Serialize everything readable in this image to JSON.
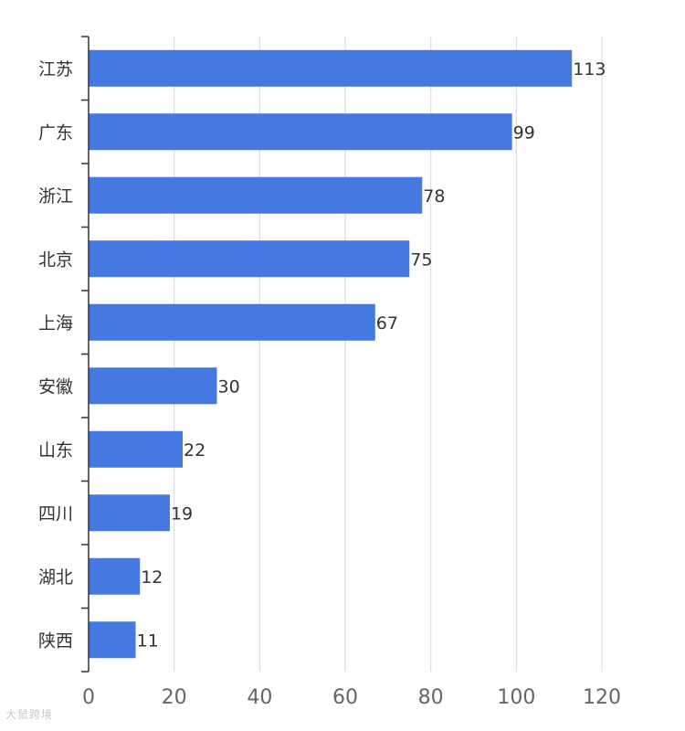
{
  "chart_data": {
    "type": "bar",
    "orientation": "horizontal",
    "categories": [
      "江苏",
      "广东",
      "浙江",
      "北京",
      "上海",
      "安徽",
      "山东",
      "四川",
      "湖北",
      "陕西"
    ],
    "values": [
      113,
      99,
      78,
      75,
      67,
      30,
      22,
      19,
      12,
      11
    ],
    "xlim": [
      0,
      120
    ],
    "x_ticks": [
      0,
      20,
      40,
      60,
      80,
      100,
      120
    ],
    "grid": "vertical",
    "bar_color": "#4479e1",
    "data_labels": true,
    "title": "",
    "xlabel": "",
    "ylabel": ""
  },
  "watermark": {
    "text": "大鼠跨境"
  }
}
